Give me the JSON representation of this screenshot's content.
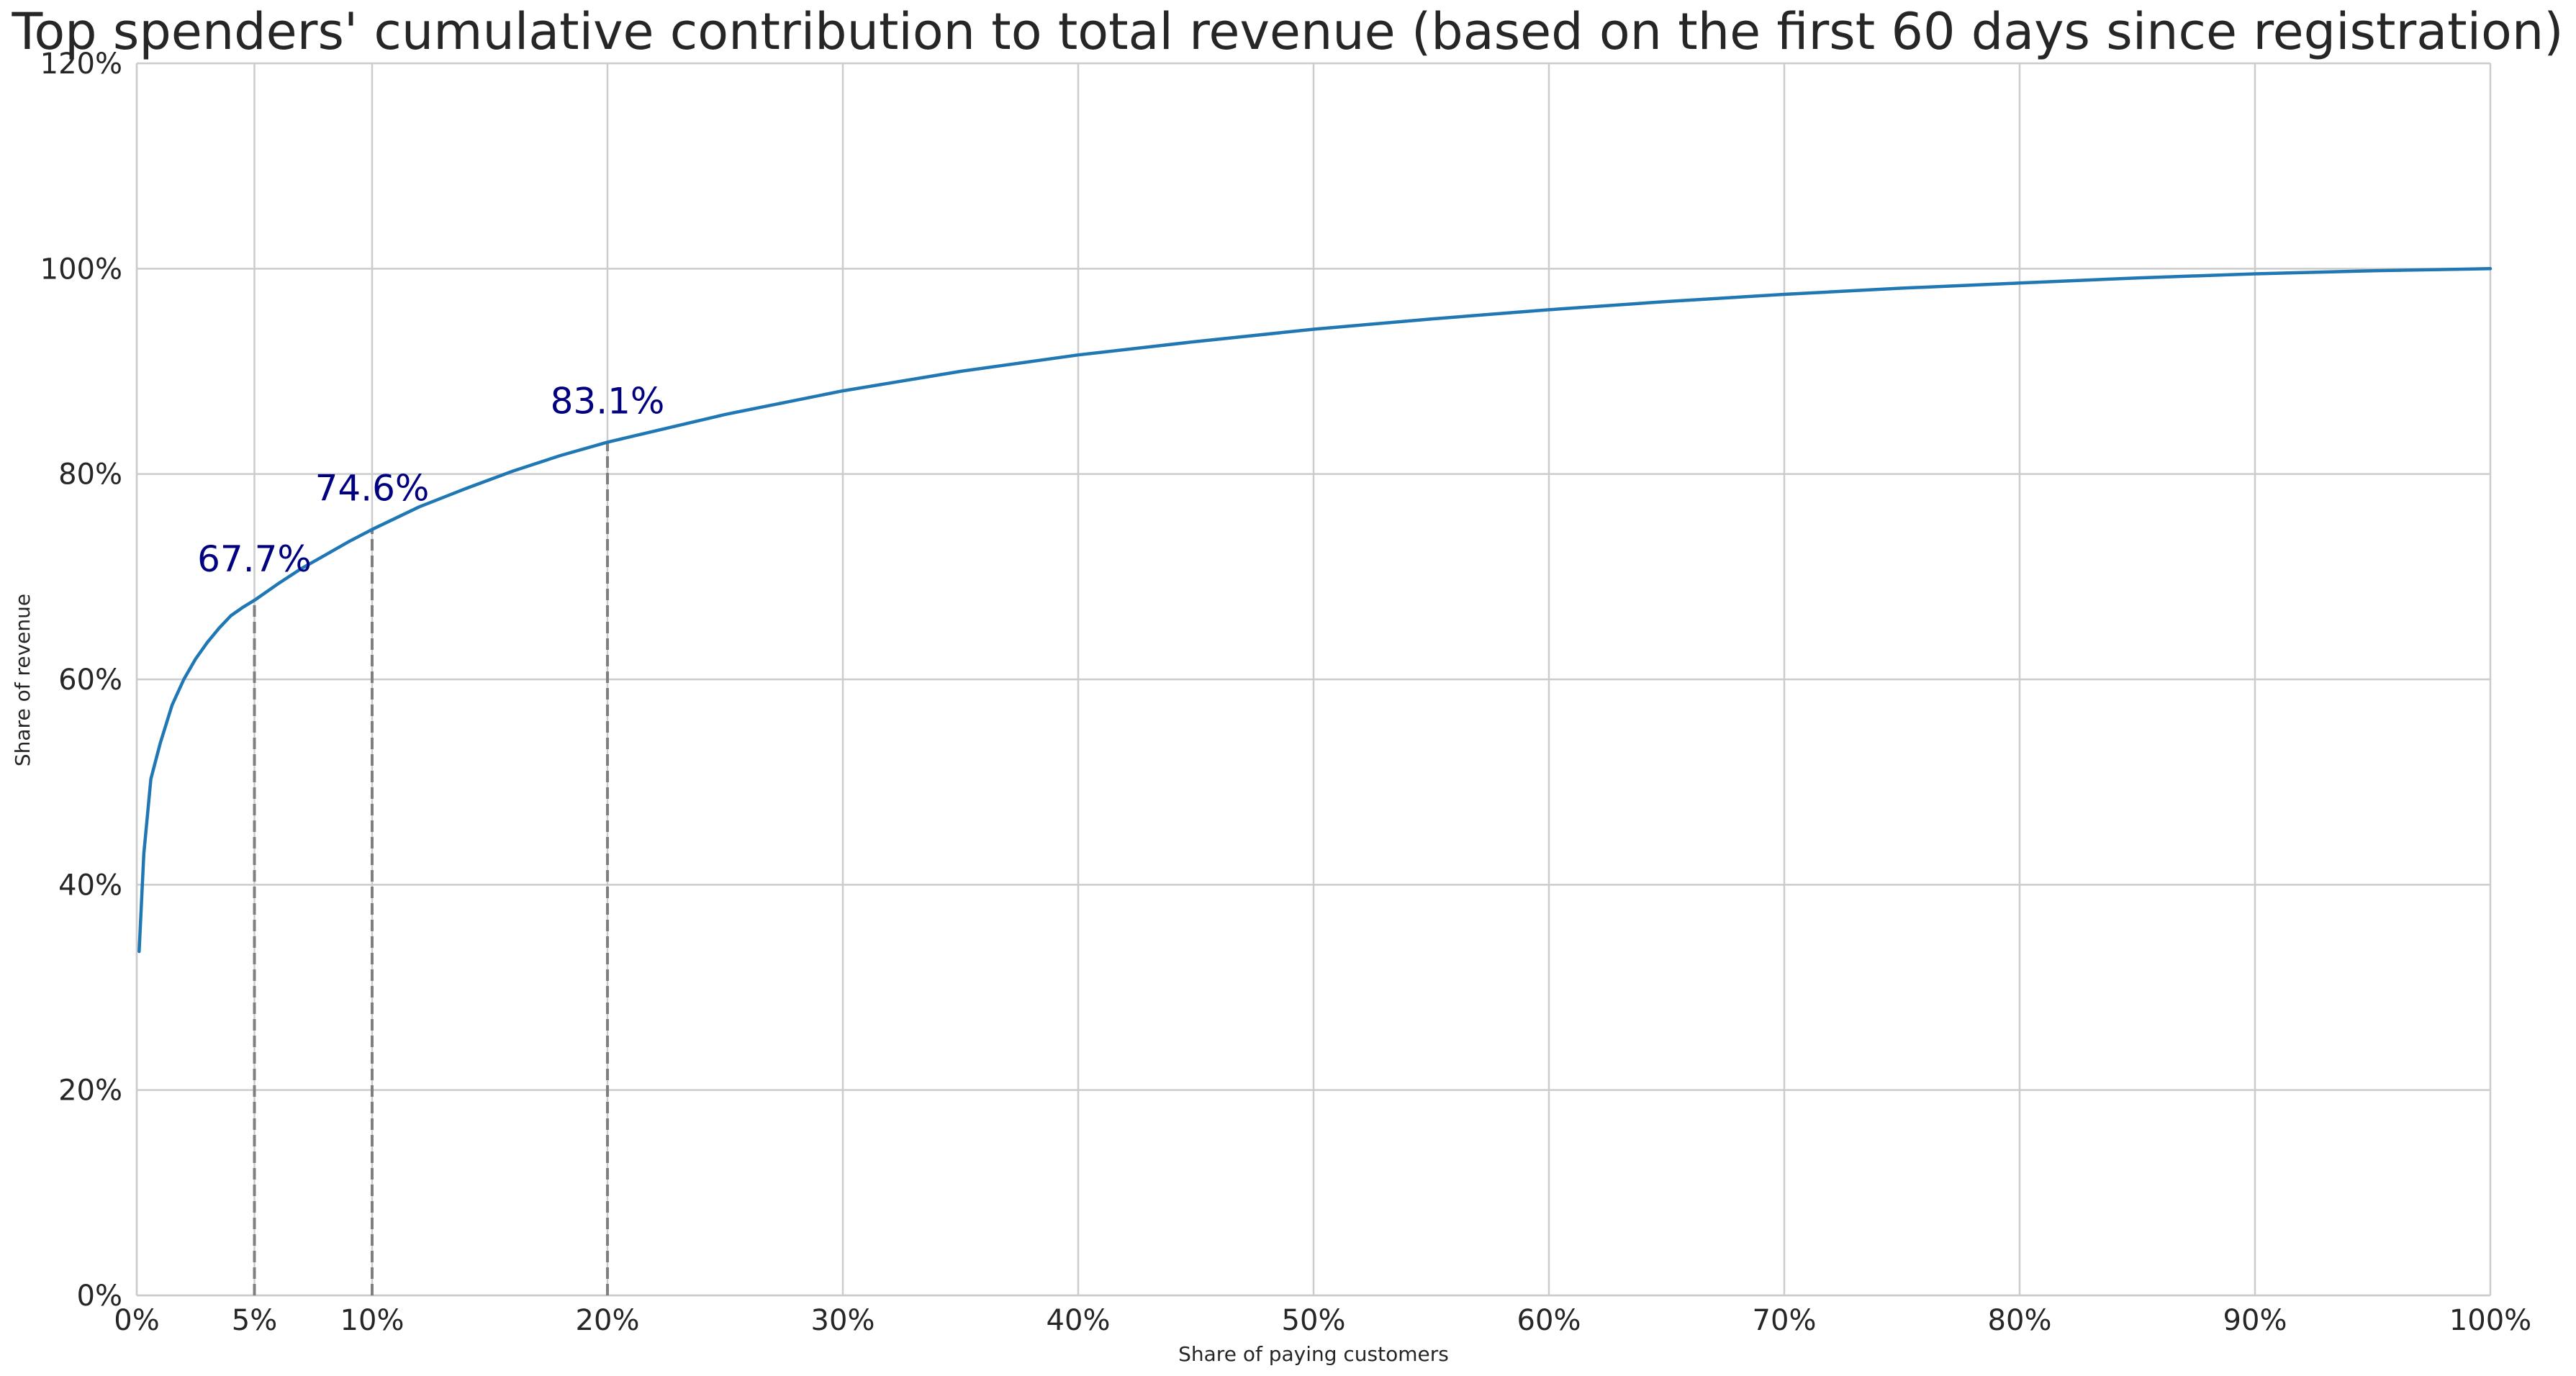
{
  "chart_data": {
    "type": "line",
    "title": "Top spenders' cumulative contribution to total revenue (based on the first 60 days since registration)",
    "xlabel": "Share of paying customers",
    "ylabel": "Share of revenue",
    "xlim": [
      0,
      100
    ],
    "ylim": [
      0,
      120
    ],
    "x_ticks": [
      {
        "value": 0,
        "label": "0%"
      },
      {
        "value": 5,
        "label": "5%"
      },
      {
        "value": 10,
        "label": "10%"
      },
      {
        "value": 20,
        "label": "20%"
      },
      {
        "value": 30,
        "label": "30%"
      },
      {
        "value": 40,
        "label": "40%"
      },
      {
        "value": 50,
        "label": "50%"
      },
      {
        "value": 60,
        "label": "60%"
      },
      {
        "value": 70,
        "label": "70%"
      },
      {
        "value": 80,
        "label": "80%"
      },
      {
        "value": 90,
        "label": "90%"
      },
      {
        "value": 100,
        "label": "100%"
      }
    ],
    "y_ticks": [
      {
        "value": 0,
        "label": "0%"
      },
      {
        "value": 20,
        "label": "20%"
      },
      {
        "value": 40,
        "label": "40%"
      },
      {
        "value": 60,
        "label": "60%"
      },
      {
        "value": 80,
        "label": "80%"
      },
      {
        "value": 100,
        "label": "100%"
      },
      {
        "value": 120,
        "label": "120%"
      }
    ],
    "grid": true,
    "legend": "none",
    "series": [
      {
        "color": "#1f77b4",
        "x": [
          0.1,
          0.3,
          0.6,
          1.0,
          1.5,
          2.0,
          2.5,
          3.0,
          3.5,
          4.0,
          4.5,
          5.0,
          6.0,
          7.0,
          8.0,
          9.0,
          10.0,
          12.0,
          14.0,
          16.0,
          18.0,
          20.0,
          25.0,
          30.0,
          35.0,
          40.0,
          45.0,
          50.0,
          55.0,
          60.0,
          65.0,
          70.0,
          75.0,
          80.0,
          85.0,
          90.0,
          95.0,
          100.0
        ],
        "y": [
          33.5,
          43.0,
          50.3,
          53.8,
          57.5,
          60.0,
          62.0,
          63.6,
          65.0,
          66.2,
          67.0,
          67.7,
          69.3,
          70.8,
          72.1,
          73.4,
          74.6,
          76.8,
          78.6,
          80.3,
          81.8,
          83.1,
          85.8,
          88.1,
          90.0,
          91.6,
          92.9,
          94.1,
          95.1,
          96.0,
          96.8,
          97.5,
          98.1,
          98.6,
          99.1,
          99.5,
          99.8,
          100.0
        ]
      }
    ],
    "reference_lines": [
      {
        "x": 5,
        "y": 67.7,
        "label": "67.7%"
      },
      {
        "x": 10,
        "y": 74.6,
        "label": "74.6%"
      },
      {
        "x": 20,
        "y": 83.1,
        "label": "83.1%"
      }
    ],
    "colors": {
      "series": "#1f77b4",
      "reference_line": "#7f7f7f",
      "annotation": "#000080",
      "grid": "#cccccc"
    }
  }
}
